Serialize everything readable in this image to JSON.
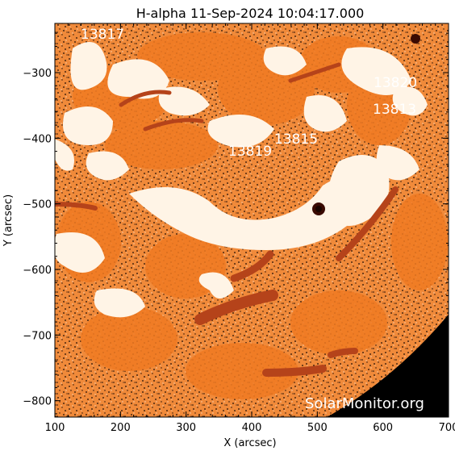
{
  "title": "H-alpha 11-Sep-2024 10:04:17.000",
  "axes": {
    "xlabel": "X (arcsec)",
    "ylabel": "Y (arcsec)",
    "xlim": [
      100,
      700
    ],
    "ylim": [
      -825,
      -225
    ],
    "xticks": [
      "100",
      "200",
      "300",
      "400",
      "500",
      "600",
      "700"
    ],
    "yticks": [
      "-300",
      "-400",
      "-500",
      "-600",
      "-700",
      "-800"
    ]
  },
  "active_regions": [
    "13817",
    "13820",
    "13813",
    "13815",
    "13819"
  ],
  "watermark": "SolarMonitor.org",
  "colors": {
    "background": "#e08030",
    "chromosphere": "#f07a22",
    "plage": "#fff4e6",
    "filament": "#b5431a",
    "sunspot": "#3a0a02",
    "off_limb": "#000000"
  }
}
